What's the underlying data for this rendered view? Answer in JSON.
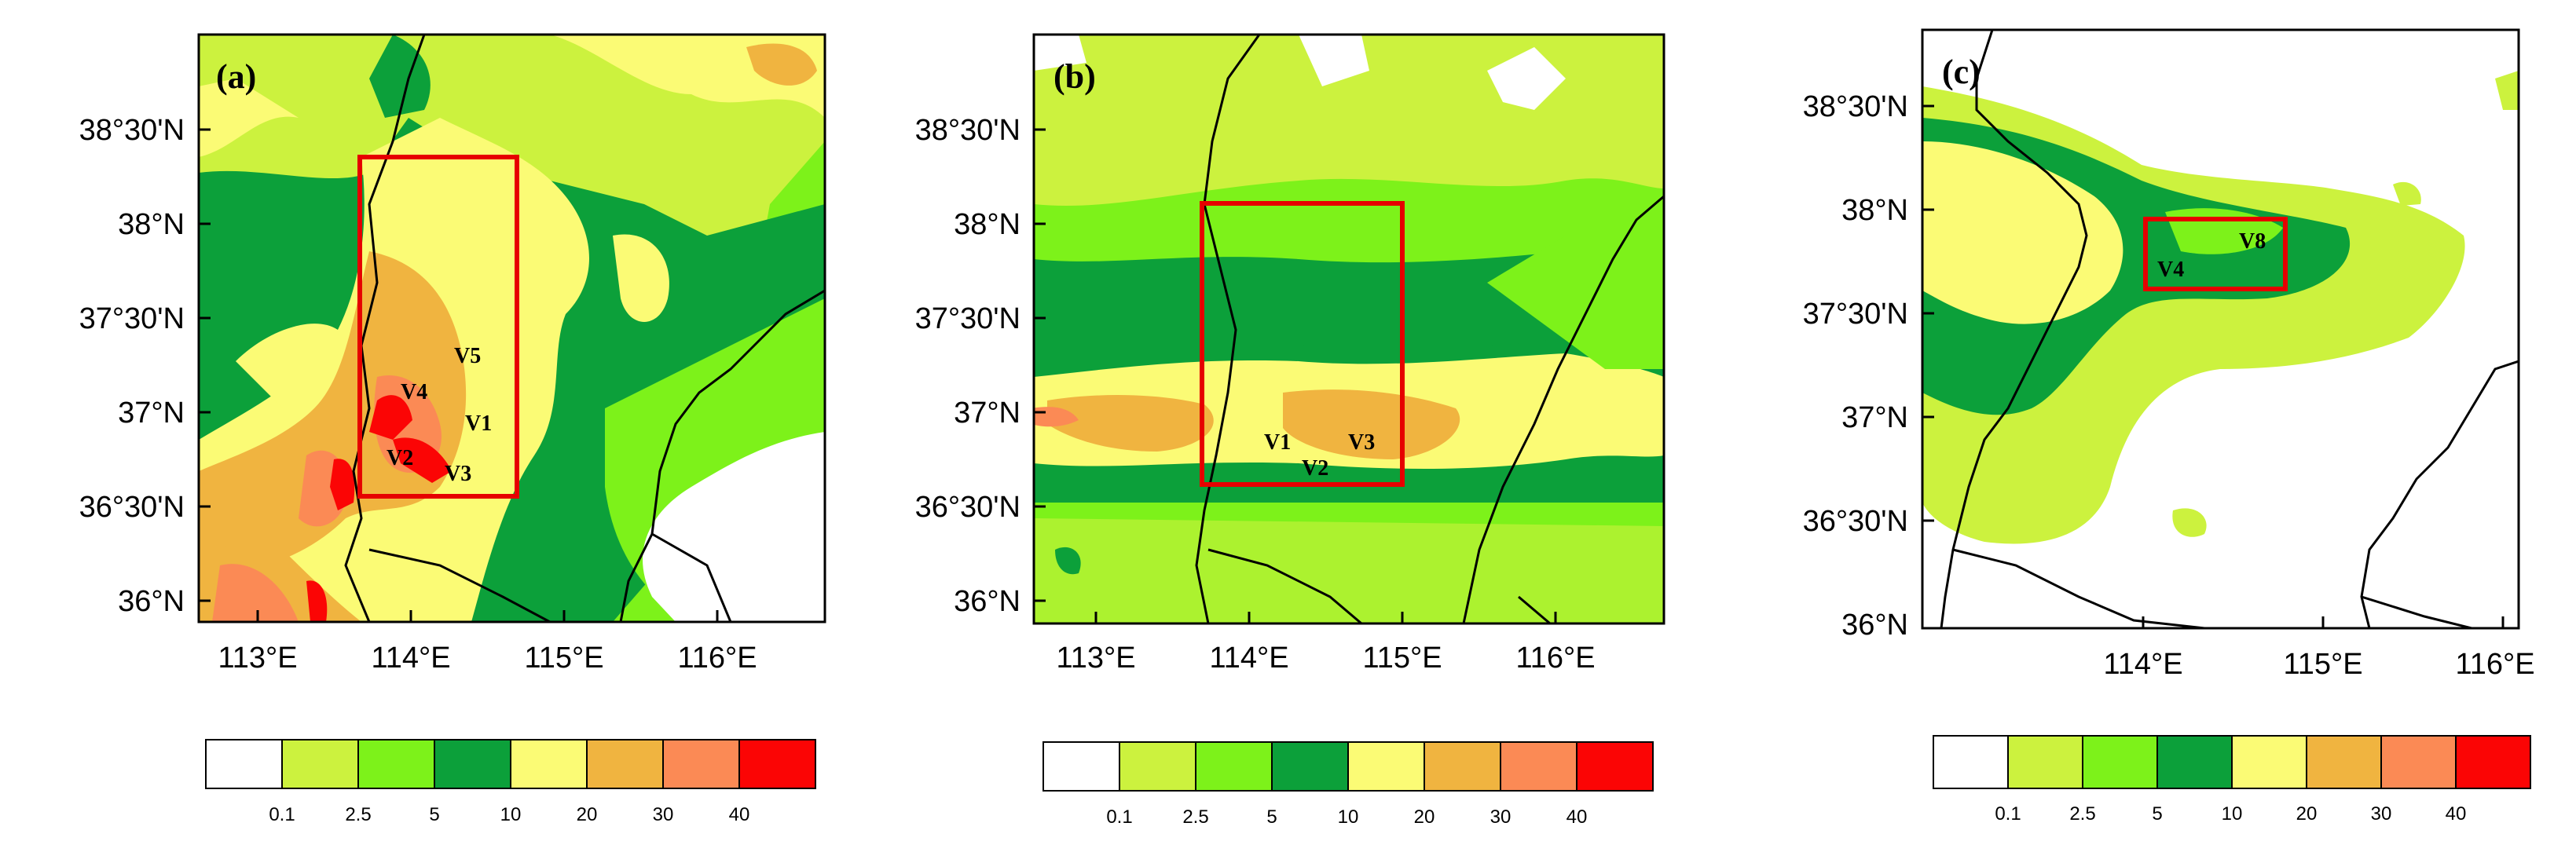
{
  "colors": {
    "white": "#ffffff",
    "lime_light": "#ccf23e",
    "lime": "#7df21a",
    "green": "#0ca03a",
    "yellow": "#fbfb75",
    "orange_light": "#f0b440",
    "orange": "#fb8a55",
    "red": "#fb0505",
    "box": "#e60000"
  },
  "colorbar": {
    "labels": [
      "0.1",
      "2.5",
      "5",
      "10",
      "20",
      "30",
      "40"
    ]
  },
  "panels": [
    {
      "id": "a",
      "label": "(a)",
      "y_ticks": [
        "38°30'N",
        "38°N",
        "37°30'N",
        "37°N",
        "36°30'N",
        "36°N"
      ],
      "x_ticks": [
        "113°E",
        "114°E",
        "115°E",
        "116°E"
      ],
      "stations": [
        "V5",
        "V4",
        "V1",
        "V2",
        "V3"
      ]
    },
    {
      "id": "b",
      "label": "(b)",
      "y_ticks": [
        "38°30'N",
        "38°N",
        "37°30'N",
        "37°N",
        "36°30'N",
        "36°N"
      ],
      "x_ticks": [
        "113°E",
        "114°E",
        "115°E",
        "116°E"
      ],
      "stations": [
        "V1",
        "V3",
        "V2"
      ]
    },
    {
      "id": "c",
      "label": "(c)",
      "y_ticks": [
        "38°30'N",
        "38°N",
        "37°30'N",
        "37°N",
        "36°30'N",
        "36°N"
      ],
      "x_ticks": [
        "114°E",
        "115°E",
        "116°E"
      ],
      "stations": [
        "V8",
        "V4"
      ]
    }
  ]
}
